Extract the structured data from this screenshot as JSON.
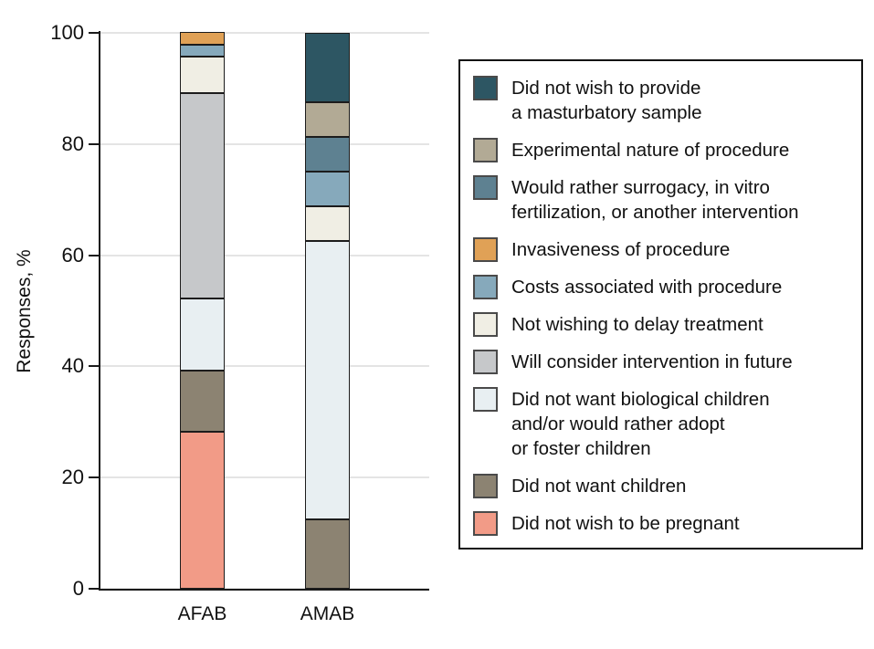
{
  "chart_data": {
    "type": "bar",
    "variant": "stacked-vertical",
    "title": "",
    "xlabel": "",
    "ylabel": "Responses, %",
    "ylim": [
      0,
      100
    ],
    "yticks": [
      0,
      20,
      40,
      60,
      80,
      100
    ],
    "grid": "horizontal",
    "legend_position": "right",
    "categories": [
      "AFAB",
      "AMAB"
    ],
    "series": [
      {
        "name": "Did not wish to be pregnant",
        "color": "#F29B87",
        "values": [
          28.3,
          0
        ]
      },
      {
        "name": "Did not want children",
        "color": "#8C8372",
        "values": [
          10.9,
          12.5
        ]
      },
      {
        "name": "Did not want biological children and/or would rather adopt or foster children",
        "color": "#E8EFF2",
        "values": [
          13.0,
          50.0
        ]
      },
      {
        "name": "Will consider intervention in future",
        "color": "#C6C8CA",
        "values": [
          37.0,
          0
        ]
      },
      {
        "name": "Not wishing to delay treatment",
        "color": "#F0EEE4",
        "values": [
          6.5,
          6.25
        ]
      },
      {
        "name": "Costs associated with procedure",
        "color": "#86A9BB",
        "values": [
          2.2,
          6.25
        ]
      },
      {
        "name": "Invasiveness of procedure",
        "color": "#E0A156",
        "values": [
          2.2,
          0
        ]
      },
      {
        "name": "Would rather surrogacy, in vitro fertilization, or another intervention",
        "color": "#5E8191",
        "values": [
          0,
          6.25
        ]
      },
      {
        "name": "Experimental nature of procedure",
        "color": "#B2AA95",
        "values": [
          0,
          6.25
        ]
      },
      {
        "name": "Did not wish to provide a masturbatory sample",
        "color": "#2D5663",
        "values": [
          0,
          12.5
        ]
      }
    ]
  },
  "legend": {
    "items": [
      {
        "color": "#2D5663",
        "lines": [
          "Did not wish to provide",
          "a masturbatory sample"
        ]
      },
      {
        "color": "#B2AA95",
        "lines": [
          "Experimental nature of procedure"
        ]
      },
      {
        "color": "#5E8191",
        "lines": [
          "Would rather surrogacy, in vitro",
          "fertilization, or another intervention"
        ]
      },
      {
        "color": "#E0A156",
        "lines": [
          "Invasiveness of procedure"
        ]
      },
      {
        "color": "#86A9BB",
        "lines": [
          "Costs associated with procedure"
        ]
      },
      {
        "color": "#F0EEE4",
        "lines": [
          "Not wishing to delay treatment"
        ]
      },
      {
        "color": "#C6C8CA",
        "lines": [
          "Will consider intervention in future"
        ]
      },
      {
        "color": "#E8EFF2",
        "lines": [
          "Did not want biological children",
          "and/or would rather adopt",
          "or foster children"
        ]
      },
      {
        "color": "#8C8372",
        "lines": [
          "Did not want children"
        ]
      },
      {
        "color": "#F29B87",
        "lines": [
          "Did not wish to be pregnant"
        ]
      }
    ]
  },
  "colors": {
    "axis": "#1a1a1a",
    "gridline": "#e4e4e4",
    "segment_border": "#1c1c1c",
    "legend_border": "#111111",
    "text": "#111111",
    "background": "#ffffff"
  }
}
